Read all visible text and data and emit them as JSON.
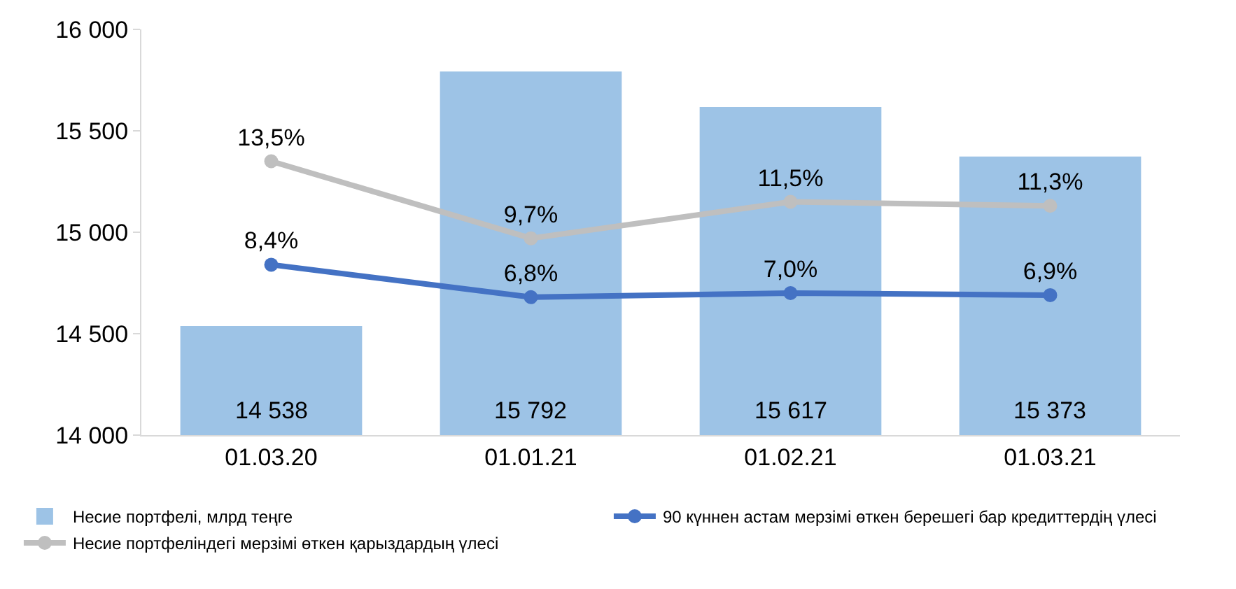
{
  "chart_data": {
    "type": "bar",
    "categories": [
      "01.03.20",
      "01.01.21",
      "01.02.21",
      "01.03.21"
    ],
    "ylim": [
      14000,
      16000
    ],
    "yticks": [
      {
        "value": 14000,
        "label": "14 000"
      },
      {
        "value": 14500,
        "label": "14 500"
      },
      {
        "value": 15000,
        "label": "15 000"
      },
      {
        "value": 15500,
        "label": "15 500"
      },
      {
        "value": 16000,
        "label": "16 000"
      }
    ],
    "y2lim": [
      0,
      20
    ],
    "legend": "bottom",
    "grid": false,
    "series": [
      {
        "name": "Несие портфелі, млрд теңге",
        "color": "#9dc3e6",
        "values": [
          14538,
          15792,
          15617,
          15373
        ],
        "value_labels": [
          "14 538",
          "15 792",
          "15 617",
          "15 373"
        ]
      },
      {
        "name": "90 күннен астам мерзімі өткен берешегі бар кредиттердің үлесі",
        "type": "line",
        "axis": "y2",
        "color": "#4472c4",
        "marker": "circle",
        "values": [
          8.4,
          6.8,
          7.0,
          6.9
        ],
        "value_labels": [
          "8,4%",
          "6,8%",
          "7,0%",
          "6,9%"
        ]
      },
      {
        "name": "Несие портфеліндегі мерзімі өткен қарыздардың үлесі",
        "type": "line",
        "axis": "y2",
        "color": "#bfbfbf",
        "marker": "circle",
        "values": [
          13.5,
          9.7,
          11.5,
          11.3
        ],
        "value_labels": [
          "13,5%",
          "9,7%",
          "11,5%",
          "11,3%"
        ]
      }
    ]
  }
}
